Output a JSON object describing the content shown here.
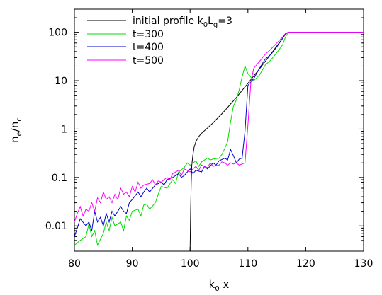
{
  "chart_data": {
    "type": "line",
    "title": "",
    "xlabel": {
      "base": "k",
      "sub": "0",
      "rest": " x"
    },
    "ylabel": {
      "n": "n",
      "n_sub": "e",
      "sep": "/",
      "d": "n",
      "d_sub": "c"
    },
    "xlim": [
      80,
      130
    ],
    "ylim": [
      0.003,
      300
    ],
    "yscale": "log",
    "grid": false,
    "legend_position": "top-left",
    "x_ticks": [
      80,
      90,
      100,
      110,
      120,
      130
    ],
    "x_tick_labels": [
      "80",
      "90",
      "100",
      "110",
      "120",
      "130"
    ],
    "y_ticks": [
      0.01,
      0.1,
      1,
      10,
      100
    ],
    "y_tick_labels": [
      "0.01",
      "0.1",
      "1",
      "10",
      "100"
    ],
    "series": [
      {
        "legend": {
          "prefix": "initial profile k",
          "sub1": "0",
          "mid": "L",
          "sub2": "g",
          "suffix": "=3"
        },
        "color": "#000000",
        "x": [
          100.0,
          100.1,
          100.2,
          100.3,
          100.5,
          100.7,
          101.0,
          101.5,
          102,
          103,
          104,
          105,
          106,
          107,
          108,
          109,
          110,
          111,
          112,
          113,
          114,
          115,
          116,
          116.5,
          117,
          120,
          125,
          130
        ],
        "y": [
          0.003,
          0.02,
          0.08,
          0.18,
          0.3,
          0.42,
          0.55,
          0.7,
          0.82,
          1.05,
          1.35,
          1.8,
          2.4,
          3.3,
          4.5,
          6.3,
          8.8,
          12.5,
          17.5,
          25,
          36,
          52,
          75,
          92,
          100,
          100,
          100,
          100
        ]
      },
      {
        "legend": {
          "prefix": "t=300"
        },
        "color": "#00dd00",
        "x": [
          80,
          81,
          82,
          82.5,
          83,
          83.5,
          84,
          85,
          85.5,
          86,
          86.5,
          87,
          88,
          88.5,
          89,
          89.5,
          90,
          91,
          91.5,
          92,
          92.5,
          93,
          94,
          94.5,
          95,
          96,
          97,
          97.5,
          98,
          99,
          99.5,
          100,
          101,
          101.5,
          102,
          103,
          103.5,
          104,
          105,
          105.5,
          106,
          106.5,
          107,
          107.5,
          108,
          108.5,
          109,
          109.5,
          110,
          111,
          112,
          113,
          114,
          115,
          116,
          116.5,
          117,
          120,
          125,
          130
        ],
        "y": [
          0.004,
          0.005,
          0.006,
          0.011,
          0.006,
          0.008,
          0.004,
          0.007,
          0.012,
          0.008,
          0.015,
          0.01,
          0.012,
          0.008,
          0.016,
          0.013,
          0.02,
          0.022,
          0.016,
          0.027,
          0.028,
          0.022,
          0.03,
          0.045,
          0.065,
          0.06,
          0.09,
          0.075,
          0.13,
          0.16,
          0.2,
          0.18,
          0.22,
          0.17,
          0.21,
          0.25,
          0.23,
          0.24,
          0.25,
          0.3,
          0.4,
          0.55,
          1.4,
          3.0,
          4.0,
          6.5,
          12,
          20,
          14,
          10,
          13,
          21,
          27,
          38,
          55,
          80,
          100,
          100,
          100,
          100
        ]
      },
      {
        "legend": {
          "prefix": "t=400"
        },
        "color": "#0000cc",
        "x": [
          80,
          80.5,
          81,
          82,
          82.5,
          83,
          83.5,
          84,
          84.5,
          85,
          85.5,
          86,
          86.5,
          87,
          88,
          88.5,
          89,
          89.5,
          90,
          91,
          91.5,
          92,
          92.5,
          93,
          94,
          95,
          95.5,
          96,
          97,
          98,
          98.5,
          99,
          100,
          100.5,
          101,
          102,
          102.5,
          103,
          104,
          104.5,
          105,
          106,
          106.5,
          107,
          107.5,
          108,
          108.5,
          109,
          109.5,
          110,
          111,
          112,
          113,
          114,
          115,
          116,
          116.5,
          117,
          120,
          125,
          130
        ],
        "y": [
          0.006,
          0.009,
          0.014,
          0.01,
          0.012,
          0.008,
          0.02,
          0.012,
          0.015,
          0.01,
          0.018,
          0.012,
          0.02,
          0.016,
          0.025,
          0.02,
          0.018,
          0.03,
          0.035,
          0.05,
          0.04,
          0.05,
          0.06,
          0.05,
          0.07,
          0.08,
          0.07,
          0.09,
          0.1,
          0.12,
          0.1,
          0.11,
          0.15,
          0.12,
          0.14,
          0.13,
          0.17,
          0.15,
          0.2,
          0.18,
          0.22,
          0.25,
          0.23,
          0.38,
          0.28,
          0.2,
          0.24,
          0.25,
          0.9,
          8.0,
          11,
          18,
          28,
          35,
          50,
          75,
          95,
          100,
          100,
          100,
          100
        ]
      },
      {
        "legend": {
          "prefix": "t=500"
        },
        "color": "#ff00ff",
        "x": [
          80,
          80.5,
          81,
          81.5,
          82,
          82.5,
          83,
          83.5,
          84,
          84.5,
          85,
          85.5,
          86,
          86.5,
          87,
          87.5,
          88,
          88.5,
          89,
          89.5,
          90,
          90.5,
          91,
          91.5,
          92,
          93,
          93.5,
          94,
          94.5,
          95,
          96,
          96.5,
          97,
          98,
          98.5,
          99,
          100,
          100.5,
          101,
          101.5,
          102,
          103,
          103.5,
          104,
          105,
          105.5,
          106,
          106.5,
          107,
          107.5,
          108,
          108.5,
          109,
          109.5,
          110,
          110.5,
          111,
          112,
          113,
          114,
          115,
          116,
          116.5,
          117,
          120,
          125,
          130
        ],
        "y": [
          0.012,
          0.018,
          0.025,
          0.016,
          0.022,
          0.02,
          0.03,
          0.02,
          0.038,
          0.03,
          0.05,
          0.035,
          0.04,
          0.03,
          0.045,
          0.035,
          0.06,
          0.045,
          0.05,
          0.04,
          0.065,
          0.05,
          0.08,
          0.06,
          0.07,
          0.075,
          0.09,
          0.07,
          0.085,
          0.08,
          0.1,
          0.09,
          0.12,
          0.14,
          0.11,
          0.15,
          0.13,
          0.15,
          0.17,
          0.14,
          0.18,
          0.16,
          0.2,
          0.17,
          0.18,
          0.21,
          0.2,
          0.18,
          0.2,
          0.19,
          0.2,
          0.18,
          0.19,
          0.2,
          1.2,
          9.0,
          18,
          25,
          35,
          45,
          60,
          80,
          95,
          100,
          100,
          100,
          100
        ]
      }
    ]
  }
}
